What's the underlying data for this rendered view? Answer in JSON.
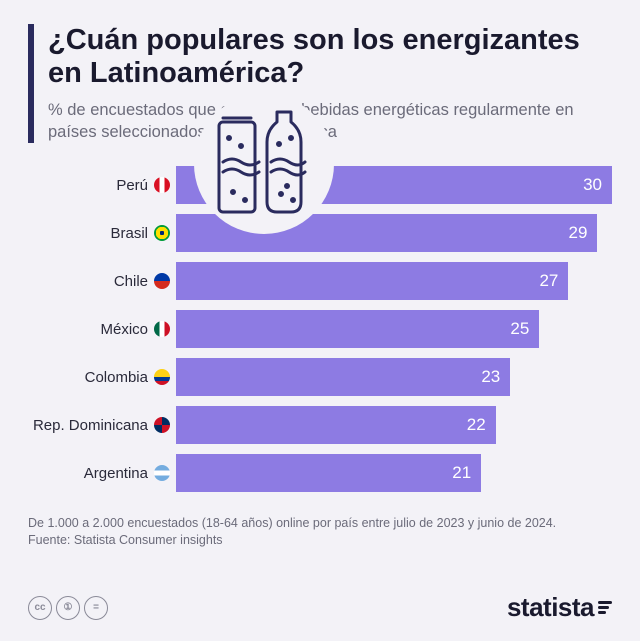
{
  "title": "¿Cuán populares son los energizantes en Latinoamérica?",
  "subtitle": "% de encuestados que consumen bebidas energéticas regularmente en países seleccionados de Latinoamérica",
  "chart": {
    "type": "bar",
    "max_value": 30,
    "bar_color": "#8d7be3",
    "value_color": "#ffffff",
    "bars": [
      {
        "label": "Perú",
        "value": 30,
        "flag_bg": "linear-gradient(90deg,#d91023 33%,#fff 33%,#fff 66%,#d91023 66%)"
      },
      {
        "label": "Brasil",
        "value": 29,
        "flag_bg": "radial-gradient(circle at 50% 50%,#002776 20%,#fedf00 20% 55%,#009b3a 55%)"
      },
      {
        "label": "Chile",
        "value": 27,
        "flag_bg": "linear-gradient(180deg,#0039a6 50%,#d52b1e 50%)"
      },
      {
        "label": "México",
        "value": 25,
        "flag_bg": "linear-gradient(90deg,#006847 33%,#fff 33%,#fff 66%,#ce1126 66%)"
      },
      {
        "label": "Colombia",
        "value": 23,
        "flag_bg": "linear-gradient(180deg,#fcd116 50%,#003893 50%,#003893 75%,#ce1126 75%)"
      },
      {
        "label": "Rep. Dominicana",
        "value": 22,
        "flag_bg": "conic-gradient(#002d62 0 25%,#ce1126 25% 50%,#002d62 50% 75%,#ce1126 75%)"
      },
      {
        "label": "Argentina",
        "value": 21,
        "flag_bg": "linear-gradient(180deg,#74acdf 33%,#fff 33%,#fff 66%,#74acdf 66%)"
      }
    ]
  },
  "illustration": {
    "bg_color": "#f3f2f7",
    "stroke_color": "#2a2b5e"
  },
  "footnote": "De 1.000 a 2.000 encuestados (18-64 años) online por país entre julio de 2023 y junio de 2024.",
  "source_label": "Fuente:",
  "source_value": "Statista Consumer insights",
  "cc": [
    "cc",
    "①",
    "="
  ],
  "brand": "statista",
  "colors": {
    "background": "#f3f2f7",
    "title": "#1a1a2e",
    "subtitle": "#6b6b7a",
    "accent_border": "#2a2b5e"
  }
}
